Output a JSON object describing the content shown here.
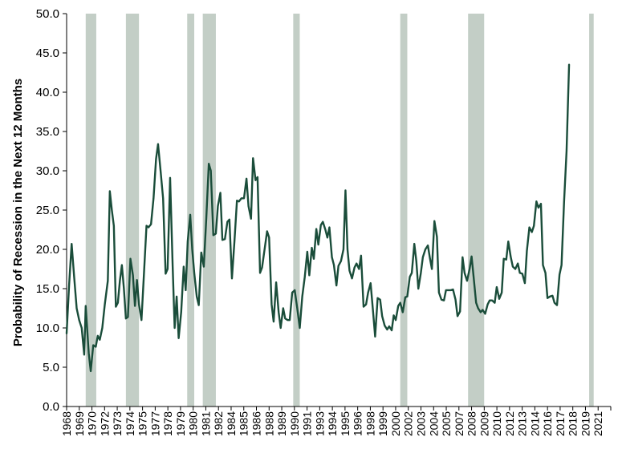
{
  "colors": {
    "line": "#1a4d3a",
    "recession": "#c3cec6",
    "axis": "#000000",
    "background": "#ffffff"
  },
  "chart_data": {
    "type": "line",
    "title": "",
    "ylabel": "Probability of Recession in the Next 12 Months",
    "xlabel": "",
    "ylim": [
      0,
      50
    ],
    "xlim": [
      1968.0,
      2022.15
    ],
    "grid": false,
    "legend": "none",
    "y_ticks": [
      "0.0",
      "5.0",
      "10.0",
      "15.0",
      "20.0",
      "25.0",
      "30.0",
      "35.0",
      "40.0",
      "45.0",
      "50.0"
    ],
    "x_tick_labels": [
      "1968",
      "1969",
      "1970",
      "1972",
      "1973",
      "1974",
      "1975",
      "1977",
      "1978",
      "1979",
      "1980",
      "1981",
      "1982",
      "1984",
      "1985",
      "1986",
      "1988",
      "1989",
      "1990",
      "1991",
      "1993",
      "1994",
      "1995",
      "1996",
      "1998",
      "1999",
      "2000",
      "2002",
      "2003",
      "2004",
      "2005",
      "2007",
      "2008",
      "2009",
      "2010",
      "2012",
      "2013",
      "2014",
      "2016",
      "2017",
      "2018",
      "2019",
      "2021"
    ],
    "recession_bands": [
      {
        "start": 1969.9,
        "end": 1970.95
      },
      {
        "start": 1973.9,
        "end": 1975.2
      },
      {
        "start": 1980.0,
        "end": 1980.7
      },
      {
        "start": 1981.55,
        "end": 1982.85
      },
      {
        "start": 1990.55,
        "end": 1991.2
      },
      {
        "start": 2001.2,
        "end": 2001.9
      },
      {
        "start": 2007.95,
        "end": 2009.55
      },
      {
        "start": 2020.0,
        "end": 2020.45
      }
    ],
    "series": [
      {
        "values": [
          [
            1968.0,
            9.3
          ],
          [
            1968.25,
            15.5
          ],
          [
            1968.5,
            20.7
          ],
          [
            1968.75,
            16.5
          ],
          [
            1969.0,
            12.5
          ],
          [
            1969.25,
            11.0
          ],
          [
            1969.5,
            10.0
          ],
          [
            1969.75,
            6.6
          ],
          [
            1969.9,
            12.8
          ],
          [
            1970.2,
            6.8
          ],
          [
            1970.4,
            4.5
          ],
          [
            1970.65,
            7.8
          ],
          [
            1970.9,
            7.6
          ],
          [
            1971.1,
            9.0
          ],
          [
            1971.3,
            8.5
          ],
          [
            1971.55,
            10.0
          ],
          [
            1971.8,
            13.0
          ],
          [
            1972.1,
            16.0
          ],
          [
            1972.3,
            27.4
          ],
          [
            1972.5,
            25.0
          ],
          [
            1972.7,
            23.0
          ],
          [
            1972.9,
            12.7
          ],
          [
            1973.1,
            13.2
          ],
          [
            1973.3,
            16.0
          ],
          [
            1973.5,
            18.0
          ],
          [
            1973.7,
            15.0
          ],
          [
            1973.9,
            11.2
          ],
          [
            1974.1,
            11.4
          ],
          [
            1974.35,
            18.8
          ],
          [
            1974.6,
            16.7
          ],
          [
            1974.8,
            12.8
          ],
          [
            1975.0,
            16.1
          ],
          [
            1975.2,
            13.0
          ],
          [
            1975.45,
            11.0
          ],
          [
            1975.7,
            17.0
          ],
          [
            1975.95,
            23.0
          ],
          [
            1976.15,
            22.8
          ],
          [
            1976.4,
            23.2
          ],
          [
            1976.65,
            26.5
          ],
          [
            1976.9,
            31.5
          ],
          [
            1977.1,
            33.4
          ],
          [
            1977.35,
            30.0
          ],
          [
            1977.6,
            26.5
          ],
          [
            1977.85,
            16.9
          ],
          [
            1978.05,
            17.5
          ],
          [
            1978.3,
            29.1
          ],
          [
            1978.55,
            18.0
          ],
          [
            1978.75,
            10.0
          ],
          [
            1978.95,
            14.0
          ],
          [
            1979.15,
            8.7
          ],
          [
            1979.4,
            12.0
          ],
          [
            1979.65,
            17.8
          ],
          [
            1979.85,
            14.8
          ],
          [
            1980.05,
            21.0
          ],
          [
            1980.3,
            24.4
          ],
          [
            1980.5,
            20.0
          ],
          [
            1980.7,
            17.0
          ],
          [
            1980.95,
            14.0
          ],
          [
            1981.15,
            12.9
          ],
          [
            1981.4,
            19.6
          ],
          [
            1981.65,
            17.8
          ],
          [
            1981.9,
            24.0
          ],
          [
            1982.15,
            30.9
          ],
          [
            1982.35,
            30.0
          ],
          [
            1982.6,
            21.8
          ],
          [
            1982.85,
            22.0
          ],
          [
            1983.05,
            25.5
          ],
          [
            1983.3,
            27.2
          ],
          [
            1983.5,
            21.2
          ],
          [
            1983.75,
            21.3
          ],
          [
            1984.0,
            23.5
          ],
          [
            1984.2,
            23.8
          ],
          [
            1984.45,
            16.3
          ],
          [
            1984.7,
            21.0
          ],
          [
            1984.95,
            26.2
          ],
          [
            1985.15,
            26.1
          ],
          [
            1985.4,
            26.5
          ],
          [
            1985.65,
            26.5
          ],
          [
            1985.9,
            29.0
          ],
          [
            1986.1,
            25.5
          ],
          [
            1986.35,
            23.9
          ],
          [
            1986.55,
            31.6
          ],
          [
            1986.8,
            28.8
          ],
          [
            1987.0,
            29.2
          ],
          [
            1987.25,
            17.0
          ],
          [
            1987.45,
            17.7
          ],
          [
            1987.7,
            20.0
          ],
          [
            1987.95,
            22.3
          ],
          [
            1988.15,
            21.5
          ],
          [
            1988.4,
            13.0
          ],
          [
            1988.6,
            10.8
          ],
          [
            1988.85,
            15.8
          ],
          [
            1989.1,
            12.0
          ],
          [
            1989.3,
            10.0
          ],
          [
            1989.55,
            12.5
          ],
          [
            1989.75,
            11.2
          ],
          [
            1990.0,
            11.0
          ],
          [
            1990.2,
            11.0
          ],
          [
            1990.45,
            14.5
          ],
          [
            1990.7,
            14.8
          ],
          [
            1990.95,
            12.5
          ],
          [
            1991.2,
            10.0
          ],
          [
            1991.45,
            14.0
          ],
          [
            1991.7,
            16.5
          ],
          [
            1991.95,
            19.7
          ],
          [
            1992.15,
            16.7
          ],
          [
            1992.4,
            20.2
          ],
          [
            1992.6,
            18.8
          ],
          [
            1992.85,
            22.6
          ],
          [
            1993.05,
            20.6
          ],
          [
            1993.3,
            23.1
          ],
          [
            1993.5,
            23.5
          ],
          [
            1993.75,
            22.5
          ],
          [
            1993.95,
            21.5
          ],
          [
            1994.15,
            22.8
          ],
          [
            1994.4,
            19.0
          ],
          [
            1994.6,
            18.0
          ],
          [
            1994.85,
            15.4
          ],
          [
            1995.05,
            17.9
          ],
          [
            1995.3,
            18.5
          ],
          [
            1995.55,
            20.0
          ],
          [
            1995.75,
            27.5
          ],
          [
            1995.95,
            20.0
          ],
          [
            1996.15,
            17.3
          ],
          [
            1996.4,
            16.3
          ],
          [
            1996.65,
            17.7
          ],
          [
            1996.85,
            18.2
          ],
          [
            1997.1,
            17.5
          ],
          [
            1997.3,
            19.2
          ],
          [
            1997.55,
            12.7
          ],
          [
            1997.8,
            13.0
          ],
          [
            1998.0,
            14.5
          ],
          [
            1998.25,
            15.7
          ],
          [
            1998.5,
            12.0
          ],
          [
            1998.7,
            8.9
          ],
          [
            1998.95,
            13.8
          ],
          [
            1999.2,
            13.6
          ],
          [
            1999.4,
            11.5
          ],
          [
            1999.65,
            10.3
          ],
          [
            1999.9,
            9.8
          ],
          [
            2000.1,
            10.2
          ],
          [
            2000.35,
            9.7
          ],
          [
            2000.55,
            11.6
          ],
          [
            2000.75,
            11.0
          ],
          [
            2001.0,
            12.8
          ],
          [
            2001.2,
            13.2
          ],
          [
            2001.45,
            12.0
          ],
          [
            2001.7,
            13.9
          ],
          [
            2001.9,
            14.0
          ],
          [
            2002.15,
            16.5
          ],
          [
            2002.35,
            17.0
          ],
          [
            2002.6,
            20.7
          ],
          [
            2002.8,
            18.5
          ],
          [
            2003.0,
            15.0
          ],
          [
            2003.25,
            17.0
          ],
          [
            2003.45,
            19.0
          ],
          [
            2003.7,
            20.0
          ],
          [
            2003.95,
            20.5
          ],
          [
            2004.15,
            18.9
          ],
          [
            2004.35,
            17.5
          ],
          [
            2004.6,
            23.6
          ],
          [
            2004.85,
            21.6
          ],
          [
            2005.05,
            14.5
          ],
          [
            2005.3,
            13.6
          ],
          [
            2005.55,
            13.5
          ],
          [
            2005.75,
            14.8
          ],
          [
            2006.0,
            14.8
          ],
          [
            2006.2,
            14.8
          ],
          [
            2006.45,
            14.9
          ],
          [
            2006.7,
            13.6
          ],
          [
            2006.9,
            11.5
          ],
          [
            2007.15,
            12.1
          ],
          [
            2007.4,
            19.0
          ],
          [
            2007.6,
            17.0
          ],
          [
            2007.85,
            16.0
          ],
          [
            2008.1,
            17.5
          ],
          [
            2008.3,
            19.1
          ],
          [
            2008.5,
            16.5
          ],
          [
            2008.75,
            13.2
          ],
          [
            2008.95,
            12.5
          ],
          [
            2009.2,
            12.0
          ],
          [
            2009.4,
            12.3
          ],
          [
            2009.65,
            11.8
          ],
          [
            2009.9,
            13.0
          ],
          [
            2010.1,
            13.5
          ],
          [
            2010.35,
            13.5
          ],
          [
            2010.6,
            13.2
          ],
          [
            2010.8,
            15.2
          ],
          [
            2011.05,
            13.7
          ],
          [
            2011.3,
            14.5
          ],
          [
            2011.5,
            18.8
          ],
          [
            2011.75,
            18.7
          ],
          [
            2011.95,
            21.0
          ],
          [
            2012.2,
            19.0
          ],
          [
            2012.4,
            17.8
          ],
          [
            2012.65,
            17.5
          ],
          [
            2012.9,
            18.2
          ],
          [
            2013.1,
            17.0
          ],
          [
            2013.35,
            16.9
          ],
          [
            2013.6,
            15.7
          ],
          [
            2013.8,
            19.8
          ],
          [
            2014.05,
            22.8
          ],
          [
            2014.3,
            22.2
          ],
          [
            2014.5,
            23.0
          ],
          [
            2014.75,
            26.1
          ],
          [
            2014.95,
            25.3
          ],
          [
            2015.2,
            25.8
          ],
          [
            2015.4,
            18.0
          ],
          [
            2015.65,
            17.0
          ],
          [
            2015.85,
            13.8
          ],
          [
            2016.1,
            14.0
          ],
          [
            2016.35,
            14.1
          ],
          [
            2016.55,
            13.2
          ],
          [
            2016.8,
            12.9
          ],
          [
            2017.05,
            16.8
          ],
          [
            2017.25,
            18.0
          ],
          [
            2017.5,
            26.0
          ],
          [
            2017.75,
            32.5
          ],
          [
            2018.0,
            43.5
          ]
        ]
      }
    ]
  }
}
